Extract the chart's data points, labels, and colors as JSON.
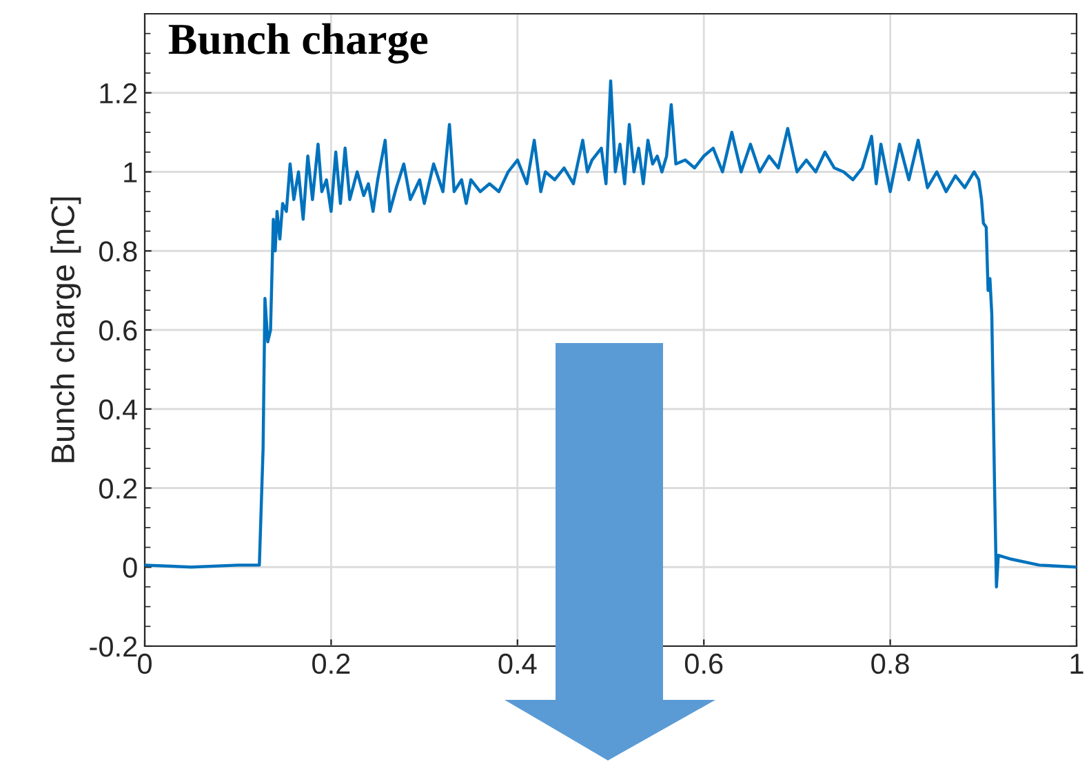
{
  "chart_data": {
    "type": "line",
    "title": "Bunch charge",
    "ylabel": "Bunch charge [nC]",
    "xlim": [
      0,
      1
    ],
    "ylim": [
      -0.2,
      1.4
    ],
    "xticks": [
      0,
      0.2,
      0.4,
      0.6,
      0.8,
      1
    ],
    "yticks": [
      -0.2,
      0,
      0.2,
      0.4,
      0.6,
      0.8,
      1,
      1.2
    ],
    "grid": true,
    "marker": "none",
    "line_style": "solid",
    "series": [
      {
        "color": "#0072bd",
        "x": [
          0,
          0.05,
          0.1,
          0.123,
          0.127,
          0.129,
          0.132,
          0.135,
          0.138,
          0.14,
          0.142,
          0.145,
          0.148,
          0.152,
          0.156,
          0.16,
          0.165,
          0.17,
          0.175,
          0.18,
          0.186,
          0.19,
          0.195,
          0.2,
          0.205,
          0.21,
          0.215,
          0.22,
          0.228,
          0.235,
          0.24,
          0.245,
          0.25,
          0.258,
          0.263,
          0.27,
          0.278,
          0.285,
          0.295,
          0.3,
          0.31,
          0.32,
          0.327,
          0.332,
          0.34,
          0.345,
          0.35,
          0.36,
          0.37,
          0.38,
          0.39,
          0.4,
          0.41,
          0.418,
          0.425,
          0.43,
          0.44,
          0.45,
          0.46,
          0.47,
          0.475,
          0.48,
          0.49,
          0.495,
          0.5,
          0.505,
          0.51,
          0.515,
          0.52,
          0.525,
          0.53,
          0.535,
          0.54,
          0.545,
          0.55,
          0.555,
          0.56,
          0.565,
          0.57,
          0.58,
          0.59,
          0.6,
          0.61,
          0.62,
          0.63,
          0.64,
          0.65,
          0.66,
          0.67,
          0.68,
          0.69,
          0.7,
          0.71,
          0.72,
          0.73,
          0.74,
          0.75,
          0.76,
          0.77,
          0.78,
          0.785,
          0.79,
          0.8,
          0.81,
          0.82,
          0.83,
          0.84,
          0.85,
          0.86,
          0.87,
          0.88,
          0.89,
          0.895,
          0.898,
          0.9,
          0.903,
          0.905,
          0.907,
          0.909,
          0.912,
          0.914,
          0.916,
          0.93,
          0.96,
          1.0
        ],
        "values": [
          0.005,
          0.0,
          0.005,
          0.005,
          0.3,
          0.68,
          0.57,
          0.6,
          0.88,
          0.8,
          0.9,
          0.83,
          0.92,
          0.9,
          1.02,
          0.93,
          1.0,
          0.88,
          1.04,
          0.93,
          1.07,
          0.95,
          0.98,
          0.9,
          1.05,
          0.92,
          1.06,
          0.93,
          1.0,
          0.94,
          0.97,
          0.9,
          0.98,
          1.08,
          0.9,
          0.96,
          1.02,
          0.93,
          0.98,
          0.92,
          1.02,
          0.95,
          1.12,
          0.95,
          0.98,
          0.92,
          0.98,
          0.95,
          0.97,
          0.95,
          1.0,
          1.03,
          0.97,
          1.08,
          0.95,
          1.0,
          0.98,
          1.01,
          0.97,
          1.08,
          1.0,
          1.03,
          1.06,
          0.97,
          1.23,
          1.0,
          1.07,
          0.97,
          1.12,
          1.0,
          1.06,
          0.97,
          1.08,
          1.02,
          1.04,
          1.0,
          1.04,
          1.17,
          1.02,
          1.03,
          1.01,
          1.04,
          1.06,
          1.0,
          1.1,
          1.0,
          1.07,
          1.0,
          1.04,
          1.01,
          1.11,
          1.0,
          1.03,
          1.0,
          1.05,
          1.01,
          1.0,
          0.98,
          1.01,
          1.09,
          0.97,
          1.07,
          0.95,
          1.07,
          0.98,
          1.08,
          0.96,
          1.0,
          0.95,
          0.99,
          0.96,
          1.0,
          0.98,
          0.93,
          0.87,
          0.86,
          0.7,
          0.73,
          0.64,
          0.2,
          -0.05,
          0.03,
          0.02,
          0.005,
          0.0
        ]
      }
    ]
  }
}
